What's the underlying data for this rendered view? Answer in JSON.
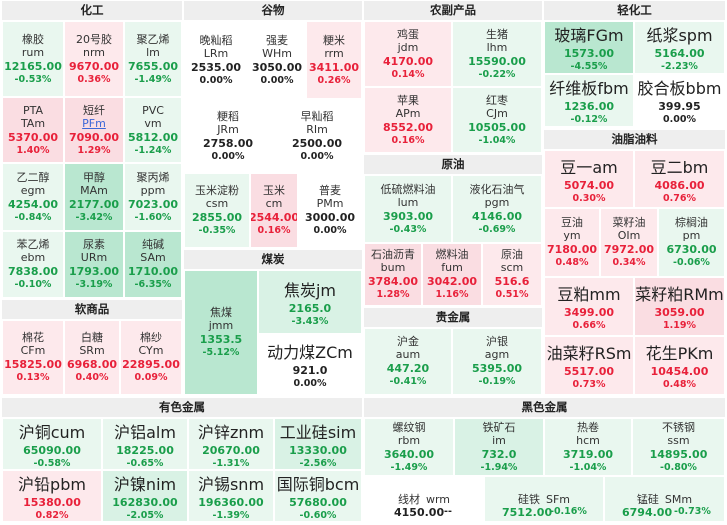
{
  "sections": {
    "chem": {
      "title": "化工",
      "cells": [
        {
          "name": "橡胶",
          "code": "rum",
          "price": "12165.00",
          "pct": "-0.53%"
        },
        {
          "name": "20号胶",
          "code": "nrm",
          "price": "9670.00",
          "pct": "0.36%"
        },
        {
          "name": "聚乙烯",
          "code": "lm",
          "price": "7655.00",
          "pct": "-1.49%"
        },
        {
          "name": "PTA",
          "code": "TAm",
          "price": "5370.00",
          "pct": "1.40%"
        },
        {
          "name": "短纤",
          "code": "PFm",
          "price": "7090.00",
          "pct": "1.29%"
        },
        {
          "name": "PVC",
          "code": "vm",
          "price": "5812.00",
          "pct": "-1.24%"
        },
        {
          "name": "乙二醇",
          "code": "egm",
          "price": "4254.00",
          "pct": "-0.84%"
        },
        {
          "name": "甲醇",
          "code": "MAm",
          "price": "2177.00",
          "pct": "-3.42%"
        },
        {
          "name": "聚丙烯",
          "code": "ppm",
          "price": "7023.00",
          "pct": "-1.60%"
        },
        {
          "name": "苯乙烯",
          "code": "ebm",
          "price": "7838.00",
          "pct": "-0.10%"
        },
        {
          "name": "尿素",
          "code": "URm",
          "price": "1793.00",
          "pct": "-3.19%"
        },
        {
          "name": "纯碱",
          "code": "SAm",
          "price": "1710.00",
          "pct": "-6.35%"
        }
      ]
    },
    "soft": {
      "title": "软商品",
      "cells": [
        {
          "name": "棉花",
          "code": "CFm",
          "price": "15825.00",
          "pct": "0.13%"
        },
        {
          "name": "白糖",
          "code": "SRm",
          "price": "6968.00",
          "pct": "0.40%"
        },
        {
          "name": "棉纱",
          "code": "CYm",
          "price": "22895.00",
          "pct": "0.09%"
        }
      ]
    },
    "grain": {
      "title": "谷物",
      "cells": [
        {
          "name": "晚籼稻",
          "code": "LRm",
          "price": "2535.00",
          "pct": "0.00%"
        },
        {
          "name": "强麦",
          "code": "WHm",
          "price": "3050.00",
          "pct": "0.00%"
        },
        {
          "name": "粳米",
          "code": "rrm",
          "price": "3411.00",
          "pct": "0.26%"
        },
        {
          "name": "粳稻",
          "code": "JRm",
          "price": "2758.00",
          "pct": "0.00%"
        },
        {
          "name": "早籼稻",
          "code": "RIm",
          "price": "2500.00",
          "pct": "0.00%"
        },
        {
          "name": "玉米淀粉",
          "code": "csm",
          "price": "2855.00",
          "pct": "-0.35%"
        },
        {
          "name": "玉米",
          "code": "cm",
          "price": "2544.00",
          "pct": "0.16%"
        },
        {
          "name": "普麦",
          "code": "PMm",
          "price": "3000.00",
          "pct": "0.00%"
        }
      ]
    },
    "coal": {
      "title": "煤炭",
      "cells": [
        {
          "name": "焦煤",
          "code": "jmm",
          "price": "1353.5",
          "pct": "-5.12%"
        },
        {
          "name": "焦炭",
          "code": "jm",
          "price": "2165.0",
          "pct": "-3.43%"
        },
        {
          "name": "动力煤",
          "code": "ZCm",
          "price": "921.0",
          "pct": "0.00%"
        }
      ]
    },
    "agri": {
      "title": "农副产品",
      "cells": [
        {
          "name": "鸡蛋",
          "code": "jdm",
          "price": "4170.00",
          "pct": "0.14%"
        },
        {
          "name": "生猪",
          "code": "lhm",
          "price": "15590.00",
          "pct": "-0.22%"
        },
        {
          "name": "苹果",
          "code": "APm",
          "price": "8552.00",
          "pct": "0.16%"
        },
        {
          "name": "红枣",
          "code": "CJm",
          "price": "10505.00",
          "pct": "-1.04%"
        }
      ]
    },
    "crude": {
      "title": "原油",
      "cells": [
        {
          "name": "低硫燃料油",
          "code": "lum",
          "price": "3903.00",
          "pct": "-0.43%"
        },
        {
          "name": "液化石油气",
          "code": "pgm",
          "price": "4146.00",
          "pct": "-0.69%"
        },
        {
          "name": "石油沥青",
          "code": "bum",
          "price": "3784.00",
          "pct": "1.28%"
        },
        {
          "name": "燃料油",
          "code": "fum",
          "price": "3042.00",
          "pct": "1.16%"
        },
        {
          "name": "原油",
          "code": "scm",
          "price": "516.6",
          "pct": "0.51%"
        }
      ]
    },
    "precious": {
      "title": "贵金属",
      "cells": [
        {
          "name": "沪金",
          "code": "aum",
          "price": "447.20",
          "pct": "-0.41%"
        },
        {
          "name": "沪银",
          "code": "agm",
          "price": "5395.00",
          "pct": "-0.19%"
        }
      ]
    },
    "light": {
      "title": "轻化工",
      "cells": [
        {
          "name": "玻璃",
          "code": "FGm",
          "price": "1573.00",
          "pct": "-4.55%"
        },
        {
          "name": "纸浆",
          "code": "spm",
          "price": "5164.00",
          "pct": "-2.23%"
        },
        {
          "name": "纤维板",
          "code": "fbm",
          "price": "1236.00",
          "pct": "-0.12%"
        },
        {
          "name": "胶合板",
          "code": "bbm",
          "price": "399.95",
          "pct": "0.00%"
        }
      ]
    },
    "oil": {
      "title": "油脂油料",
      "cells": [
        {
          "name": "豆一",
          "code": "am",
          "price": "5074.00",
          "pct": "0.30%"
        },
        {
          "name": "豆二",
          "code": "bm",
          "price": "4086.00",
          "pct": "0.76%"
        },
        {
          "name": "豆油",
          "code": "ym",
          "price": "7180.00",
          "pct": "0.48%"
        },
        {
          "name": "菜籽油",
          "code": "OIm",
          "price": "7972.00",
          "pct": "0.34%"
        },
        {
          "name": "棕榈油",
          "code": "pm",
          "price": "6730.00",
          "pct": "-0.06%"
        },
        {
          "name": "豆粕",
          "code": "mm",
          "price": "3499.00",
          "pct": "0.66%"
        },
        {
          "name": "菜籽粕",
          "code": "RMm",
          "price": "3059.00",
          "pct": "1.19%"
        },
        {
          "name": "油菜籽",
          "code": "RSm",
          "price": "5517.00",
          "pct": "0.73%"
        },
        {
          "name": "花生",
          "code": "PKm",
          "price": "10454.00",
          "pct": "0.48%"
        }
      ]
    },
    "nonferrous": {
      "title": "有色金属",
      "cells": [
        {
          "name": "沪铜",
          "code": "cum",
          "price": "65090.00",
          "pct": "-0.58%"
        },
        {
          "name": "沪铝",
          "code": "alm",
          "price": "18225.00",
          "pct": "-0.65%"
        },
        {
          "name": "沪锌",
          "code": "znm",
          "price": "20670.00",
          "pct": "-1.31%"
        },
        {
          "name": "工业硅",
          "code": "sim",
          "price": "13330.00",
          "pct": "-2.56%"
        },
        {
          "name": "沪铅",
          "code": "pbm",
          "price": "15380.00",
          "pct": "0.82%"
        },
        {
          "name": "沪镍",
          "code": "nim",
          "price": "162830.00",
          "pct": "-2.05%"
        },
        {
          "name": "沪锡",
          "code": "snm",
          "price": "196360.00",
          "pct": "-1.39%"
        },
        {
          "name": "国际铜",
          "code": "bcm",
          "price": "57680.00",
          "pct": "-0.60%"
        }
      ]
    },
    "ferrous": {
      "title": "黑色金属",
      "cells": [
        {
          "name": "螺纹钢",
          "code": "rbm",
          "price": "3640.00",
          "pct": "-1.49%"
        },
        {
          "name": "铁矿石",
          "code": "im",
          "price": "732.0",
          "pct": "-1.94%"
        },
        {
          "name": "热卷",
          "code": "hcm",
          "price": "3719.00",
          "pct": "-1.04%"
        },
        {
          "name": "不锈钢",
          "code": "ssm",
          "price": "14895.00",
          "pct": "-0.80%"
        },
        {
          "name": "线材",
          "code": "wrm",
          "price": "4150.00",
          "pct": "--"
        },
        {
          "name": "硅铁",
          "code": "SFm",
          "price": "7512.00",
          "pct": "-0.16%"
        },
        {
          "name": "锰硅",
          "code": "SMm",
          "price": "6794.00",
          "pct": "-0.73%"
        }
      ]
    }
  }
}
